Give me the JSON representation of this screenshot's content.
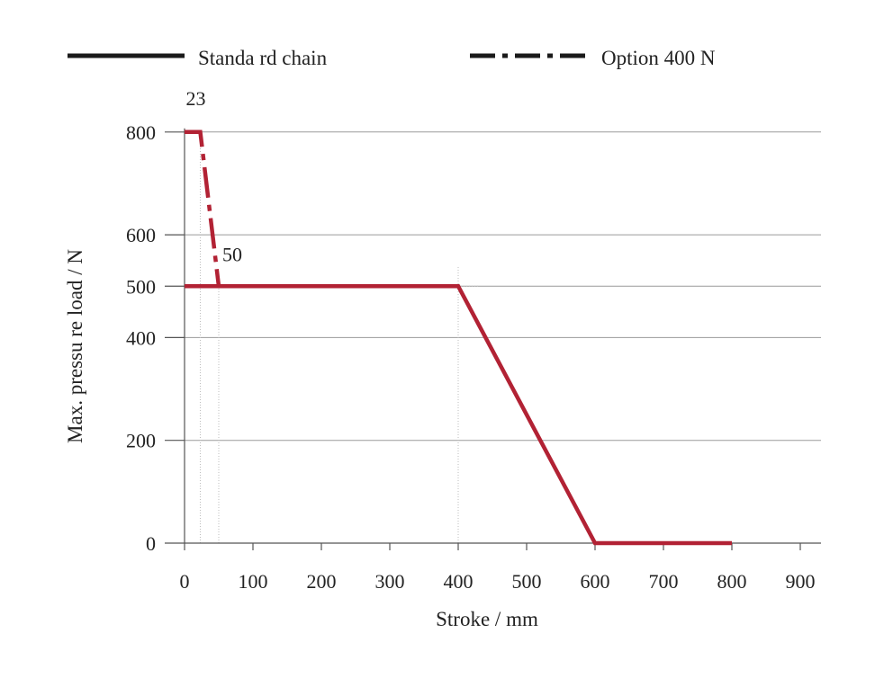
{
  "chart_data": {
    "type": "line",
    "xlabel": "Stroke / mm",
    "ylabel": "Max. pressu re load / N",
    "xlim": [
      0,
      930
    ],
    "ylim": [
      0,
      800
    ],
    "xticks": [
      0,
      100,
      200,
      300,
      400,
      500,
      600,
      700,
      800,
      900
    ],
    "xtick_labels": [
      "0",
      "100",
      "200",
      "300",
      "400",
      "500",
      "600",
      "700",
      "800",
      "900"
    ],
    "yticks": [
      0,
      200,
      400,
      500,
      600,
      800
    ],
    "ytick_labels": [
      "0",
      "200",
      "400",
      "500",
      "600",
      "800"
    ],
    "grid": "horizontal",
    "legend_position": "top",
    "series": [
      {
        "name": "Standa rd chain",
        "style": "solid",
        "color": "#b22234",
        "points": [
          [
            0,
            500
          ],
          [
            400,
            500
          ],
          [
            600,
            0
          ],
          [
            800,
            0
          ]
        ]
      },
      {
        "name": "Option 400 N",
        "style": "dashdot",
        "color": "#b22234",
        "points": [
          [
            0,
            800
          ],
          [
            23,
            800
          ],
          [
            50,
            500
          ]
        ]
      }
    ],
    "annotations": [
      {
        "text": "23",
        "x": 23,
        "y": 800
      },
      {
        "text": "50",
        "x": 50,
        "y": 500
      }
    ],
    "guides": [
      {
        "x": 23,
        "y_from": 0,
        "y_to": 800
      },
      {
        "x": 50,
        "y_from": 0,
        "y_to": 500
      },
      {
        "x": 400,
        "y_from": 0,
        "y_to": 500
      }
    ]
  }
}
